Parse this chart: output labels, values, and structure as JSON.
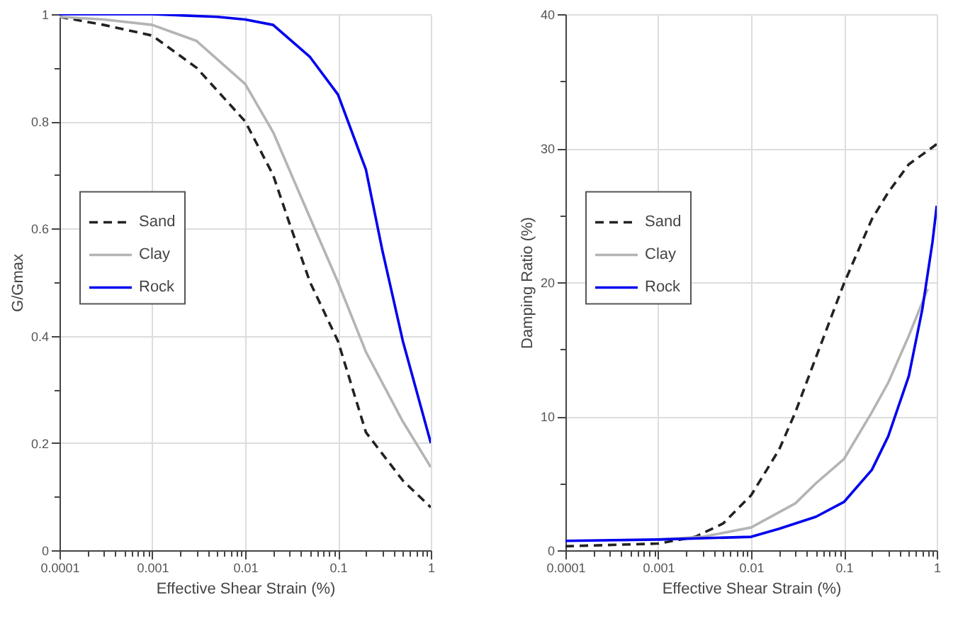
{
  "chart_data": [
    {
      "type": "line",
      "xlabel": "Effective Shear Strain (%)",
      "ylabel": "G/Gmax",
      "log": "x",
      "grid": true,
      "legend": "left",
      "xlim": [
        0.0001,
        1
      ],
      "ylim": [
        0,
        1
      ],
      "xticks": [
        0.0001,
        {
          "value": 0.0002,
          "label": null
        },
        {
          "value": 0.0003,
          "label": null
        },
        {
          "value": 0.0004,
          "label": null
        },
        {
          "value": 0.0005,
          "label": null
        },
        {
          "value": 0.0006,
          "label": null
        },
        {
          "value": 0.0007,
          "label": null
        },
        {
          "value": 0.0008,
          "label": null
        },
        {
          "value": 0.0009,
          "label": null
        },
        0.001,
        {
          "value": 0.002,
          "label": null
        },
        {
          "value": 0.003,
          "label": null
        },
        {
          "value": 0.004,
          "label": null
        },
        {
          "value": 0.005,
          "label": null
        },
        {
          "value": 0.006,
          "label": null
        },
        {
          "value": 0.007,
          "label": null
        },
        {
          "value": 0.008,
          "label": null
        },
        {
          "value": 0.009,
          "label": null
        },
        0.01,
        {
          "value": 0.02,
          "label": null
        },
        {
          "value": 0.03,
          "label": null
        },
        {
          "value": 0.04,
          "label": null
        },
        {
          "value": 0.05,
          "label": null
        },
        {
          "value": 0.06,
          "label": null
        },
        {
          "value": 0.07,
          "label": null
        },
        {
          "value": 0.08,
          "label": null
        },
        {
          "value": 0.09,
          "label": null
        },
        0.1,
        {
          "value": 0.2,
          "label": null
        },
        {
          "value": 0.3,
          "label": null
        },
        {
          "value": 0.4,
          "label": null
        },
        {
          "value": 0.5,
          "label": null
        },
        {
          "value": 0.6,
          "label": null
        },
        {
          "value": 0.7,
          "label": null
        },
        {
          "value": 0.8,
          "label": null
        },
        {
          "value": 0.9,
          "label": null
        },
        1
      ],
      "yticks": [
        0,
        {
          "value": 0.1,
          "label": null
        },
        0.2,
        {
          "value": 0.3,
          "label": null
        },
        0.4,
        {
          "value": 0.5,
          "label": null
        },
        0.6,
        {
          "value": 0.7,
          "label": null
        },
        0.8,
        {
          "value": 0.9,
          "label": null
        },
        1
      ],
      "series": [
        {
          "name": "Sand",
          "color": "#222222",
          "line_style": "dashed",
          "x": [
            0.0001,
            0.0003,
            0.001,
            0.003,
            0.01,
            0.02,
            0.03,
            0.05,
            0.1,
            0.2,
            0.3,
            0.5,
            1
          ],
          "values": [
            0.995,
            0.98,
            0.96,
            0.9,
            0.8,
            0.7,
            0.61,
            0.5,
            0.39,
            0.22,
            0.18,
            0.13,
            0.08
          ]
        },
        {
          "name": "Clay",
          "color": "#b4b4b4",
          "line_style": "solid",
          "x": [
            0.0001,
            0.0003,
            0.001,
            0.003,
            0.01,
            0.02,
            0.05,
            0.1,
            0.2,
            0.5,
            1
          ],
          "values": [
            0.995,
            0.99,
            0.98,
            0.95,
            0.87,
            0.78,
            0.62,
            0.5,
            0.37,
            0.24,
            0.155
          ]
        },
        {
          "name": "Rock",
          "color": "#0000ee",
          "line_style": "solid",
          "x": [
            0.0001,
            0.001,
            0.005,
            0.01,
            0.02,
            0.05,
            0.1,
            0.2,
            0.3,
            0.5,
            1
          ],
          "values": [
            1,
            1,
            0.995,
            0.99,
            0.98,
            0.92,
            0.85,
            0.71,
            0.56,
            0.39,
            0.2
          ]
        }
      ]
    },
    {
      "type": "line",
      "xlabel": "Effective Shear Strain (%)",
      "ylabel": "Damping Ratio (%)",
      "log": "x",
      "grid": true,
      "legend": "left",
      "xlim": [
        0.0001,
        1
      ],
      "ylim": [
        0,
        40
      ],
      "xticks": [
        0.0001,
        {
          "value": 0.0002,
          "label": null
        },
        {
          "value": 0.0003,
          "label": null
        },
        {
          "value": 0.0004,
          "label": null
        },
        {
          "value": 0.0005,
          "label": null
        },
        {
          "value": 0.0006,
          "label": null
        },
        {
          "value": 0.0007,
          "label": null
        },
        {
          "value": 0.0008,
          "label": null
        },
        {
          "value": 0.0009,
          "label": null
        },
        0.001,
        {
          "value": 0.002,
          "label": null
        },
        {
          "value": 0.003,
          "label": null
        },
        {
          "value": 0.004,
          "label": null
        },
        {
          "value": 0.005,
          "label": null
        },
        {
          "value": 0.006,
          "label": null
        },
        {
          "value": 0.007,
          "label": null
        },
        {
          "value": 0.008,
          "label": null
        },
        {
          "value": 0.009,
          "label": null
        },
        0.01,
        {
          "value": 0.02,
          "label": null
        },
        {
          "value": 0.03,
          "label": null
        },
        {
          "value": 0.04,
          "label": null
        },
        {
          "value": 0.05,
          "label": null
        },
        {
          "value": 0.06,
          "label": null
        },
        {
          "value": 0.07,
          "label": null
        },
        {
          "value": 0.08,
          "label": null
        },
        {
          "value": 0.09,
          "label": null
        },
        0.1,
        {
          "value": 0.2,
          "label": null
        },
        {
          "value": 0.3,
          "label": null
        },
        {
          "value": 0.4,
          "label": null
        },
        {
          "value": 0.5,
          "label": null
        },
        {
          "value": 0.6,
          "label": null
        },
        {
          "value": 0.7,
          "label": null
        },
        {
          "value": 0.8,
          "label": null
        },
        {
          "value": 0.9,
          "label": null
        },
        1
      ],
      "yticks": [
        0,
        {
          "value": 5,
          "label": null
        },
        10,
        {
          "value": 15,
          "label": null
        },
        20,
        {
          "value": 25,
          "label": null
        },
        30,
        {
          "value": 35,
          "label": null
        },
        40
      ],
      "series": [
        {
          "name": "Sand",
          "color": "#222222",
          "line_style": "dashed",
          "x": [
            0.0001,
            0.001,
            0.0025,
            0.005,
            0.01,
            0.02,
            0.03,
            0.05,
            0.1,
            0.2,
            0.3,
            0.5,
            1
          ],
          "values": [
            0.3,
            0.5,
            1,
            2,
            4.1,
            7.5,
            10.3,
            14.4,
            19.9,
            24.7,
            26.7,
            28.8,
            30.3
          ]
        },
        {
          "name": "Clay",
          "color": "#b4b4b4",
          "line_style": "solid",
          "x": [
            0.001,
            0.003,
            0.01,
            0.03,
            0.05,
            0.1,
            0.2,
            0.3,
            0.5,
            0.8
          ],
          "values": [
            0.8,
            1,
            1.7,
            3.5,
            5,
            6.8,
            10.3,
            12.5,
            16,
            19.5
          ]
        },
        {
          "name": "Rock",
          "color": "#0000ee",
          "line_style": "solid",
          "x": [
            0.0001,
            0.001,
            0.01,
            0.02,
            0.05,
            0.1,
            0.2,
            0.3,
            0.5,
            0.7,
            0.9,
            1
          ],
          "values": [
            0.7,
            0.8,
            1,
            1.6,
            2.5,
            3.6,
            6,
            8.5,
            13,
            18,
            23,
            25.7
          ]
        }
      ]
    }
  ]
}
